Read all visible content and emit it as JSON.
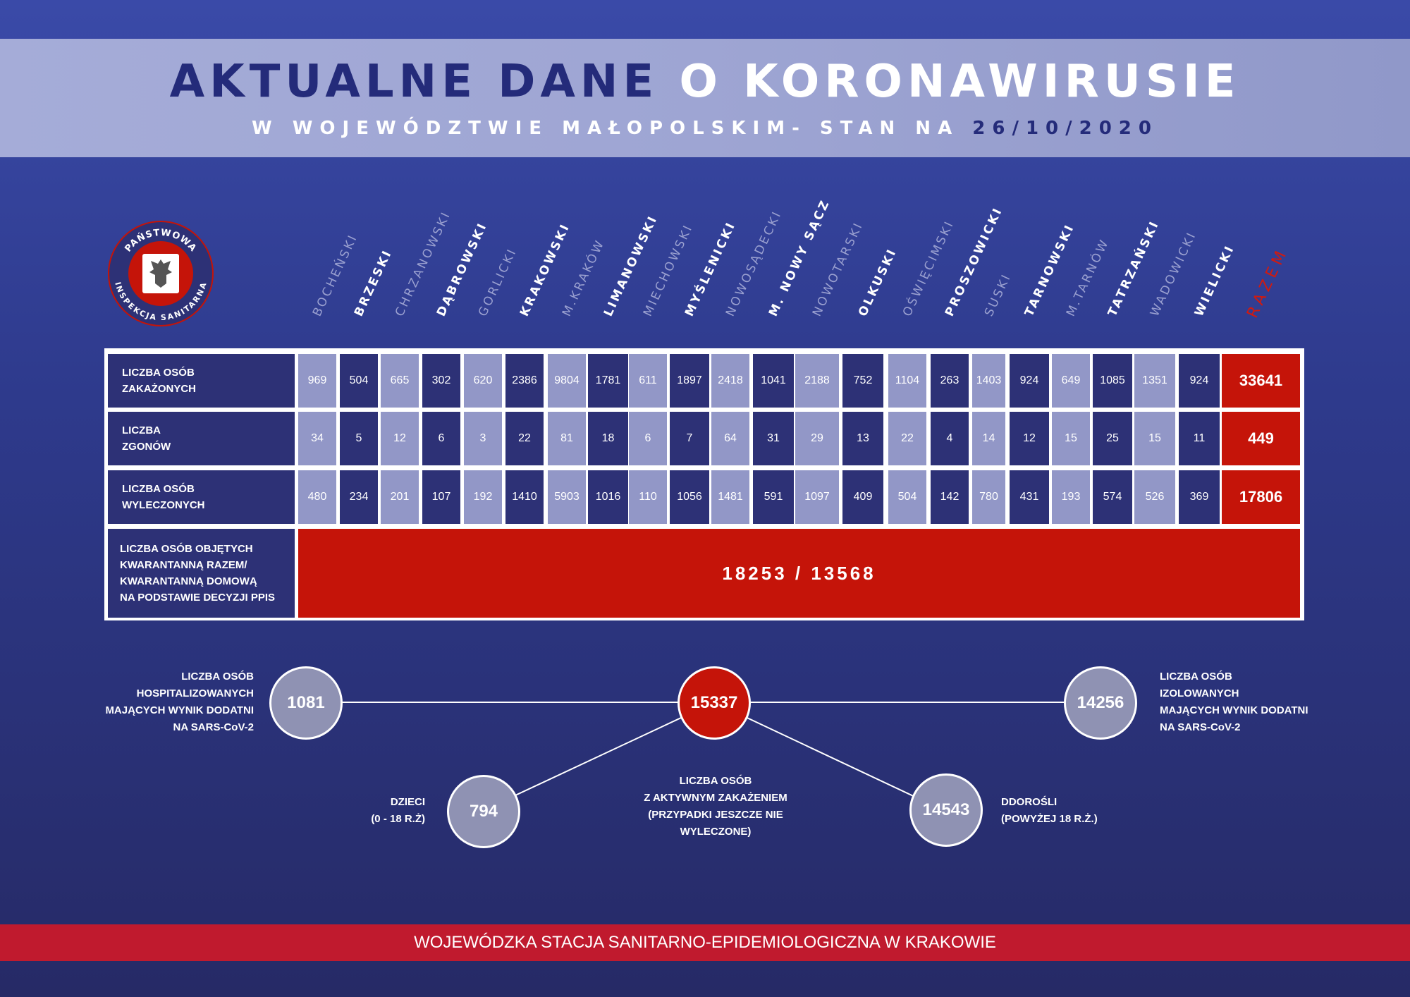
{
  "header": {
    "title_part1": "AKTUALNE DANE",
    "title_part2": "O KORONAWIRUSIE",
    "subtitle": "W WOJEWÓDZTWIE MAŁOPOLSKIM- STAN NA",
    "date": "26/10/2020"
  },
  "logo": {
    "top_text": "PAŃSTWOWA",
    "bottom_text": "INSPEKCJA SANITARNA"
  },
  "colors": {
    "red": "#c51409",
    "navy": "#2d3176",
    "light_cell": "#9297c7",
    "header_band": "#a5acd8",
    "footer": "#c01a2e"
  },
  "columns": [
    {
      "name": "BOCHEŃSKI",
      "tone": "light"
    },
    {
      "name": "BRZESKI",
      "tone": "dark"
    },
    {
      "name": "CHRZANOWSKI",
      "tone": "light"
    },
    {
      "name": "DĄBROWSKI",
      "tone": "dark"
    },
    {
      "name": "GORLICKI",
      "tone": "light"
    },
    {
      "name": "KRAKOWSKI",
      "tone": "dark"
    },
    {
      "name": "M.KRAKÓW",
      "tone": "light"
    },
    {
      "name": "LIMANOWSKI",
      "tone": "dark"
    },
    {
      "name": "MIECHOWSKI",
      "tone": "light"
    },
    {
      "name": "MYŚLENICKI",
      "tone": "dark"
    },
    {
      "name": "NOWOSĄDECKI",
      "tone": "light"
    },
    {
      "name": "M. NOWY SĄCZ",
      "tone": "dark"
    },
    {
      "name": "NOWOTARSKI",
      "tone": "light"
    },
    {
      "name": "OLKUSKI",
      "tone": "dark"
    },
    {
      "name": "OŚWIĘCIMSKI",
      "tone": "light"
    },
    {
      "name": "PROSZOWICKI",
      "tone": "dark"
    },
    {
      "name": "SUSKI",
      "tone": "light"
    },
    {
      "name": "TARNOWSKI",
      "tone": "dark"
    },
    {
      "name": "M.TARNÓW",
      "tone": "light"
    },
    {
      "name": "TATRZAŃSKI",
      "tone": "dark"
    },
    {
      "name": "WADOWICKI",
      "tone": "light"
    },
    {
      "name": "WIELICKI",
      "tone": "dark"
    }
  ],
  "total_column": "RAZEM",
  "rows": [
    {
      "label": [
        "LICZBA OSÓB",
        "ZAKAŻONYCH"
      ],
      "values": [
        "969",
        "504",
        "665",
        "302",
        "620",
        "2386",
        "9804",
        "1781",
        "611",
        "1897",
        "2418",
        "1041",
        "2188",
        "752",
        "1104",
        "263",
        "1403",
        "924",
        "649",
        "1085",
        "1351",
        "924"
      ],
      "total": "33641"
    },
    {
      "label": [
        "LICZBA",
        "ZGONÓW"
      ],
      "values": [
        "34",
        "5",
        "12",
        "6",
        "3",
        "22",
        "81",
        "18",
        "6",
        "7",
        "64",
        "31",
        "29",
        "13",
        "22",
        "4",
        "14",
        "12",
        "15",
        "25",
        "15",
        "11"
      ],
      "total": "449"
    },
    {
      "label": [
        "LICZBA OSÓB",
        "WYLECZONYCH"
      ],
      "values": [
        "480",
        "234",
        "201",
        "107",
        "192",
        "1410",
        "5903",
        "1016",
        "110",
        "1056",
        "1481",
        "591",
        "1097",
        "409",
        "504",
        "142",
        "780",
        "431",
        "193",
        "574",
        "526",
        "369"
      ],
      "total": "17806"
    }
  ],
  "quarantine": {
    "label": [
      "LICZBA OSÓB OBJĘTYCH",
      "KWARANTANNĄ RAZEM/",
      "KWARANTANNĄ DOMOWĄ",
      "NA PODSTAWIE DECYZJI PPIS"
    ],
    "value": "18253 / 13568"
  },
  "diagram": {
    "hospitalized": {
      "value": "1081",
      "label": [
        "LICZBA OSÓB",
        "HOSPITALIZOWANYCH",
        "MAJĄCYCH WYNIK DODATNI",
        "NA SARS-CoV-2"
      ]
    },
    "active": {
      "value": "15337",
      "label": [
        "LICZBA OSÓB",
        "Z AKTYWNYM ZAKAŻENIEM",
        "(PRZYPADKI JESZCZE NIE",
        "WYLECZONE)"
      ]
    },
    "isolated": {
      "value": "14256",
      "label": [
        "LICZBA OSÓB",
        "IZOLOWANYCH",
        "MAJĄCYCH WYNIK DODATNI",
        "NA SARS-CoV-2"
      ]
    },
    "children": {
      "value": "794",
      "label": [
        "DZIECI",
        "(0 - 18 R.Ż)"
      ]
    },
    "adults": {
      "value": "14543",
      "label": [
        "DDOROŚLI",
        "(POWYŻEJ 18 R.Ż.)"
      ]
    }
  },
  "footer": "WOJEWÓDZKA STACJA SANITARNO-EPIDEMIOLOGICZNA W KRAKOWIE"
}
